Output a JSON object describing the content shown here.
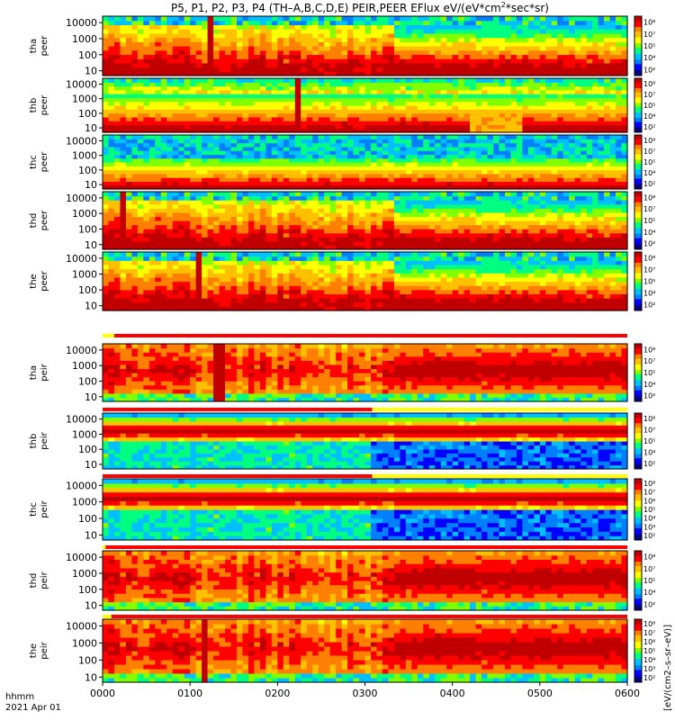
{
  "title": {
    "prefix": "P5, P1, P2, P3, P4 (TH–A,B,C,D,E) PEIR,PEER EFlux eV/(eV*cm",
    "sup": "2",
    "suffix": "*sec*sr)"
  },
  "time_axis": {
    "label_line1": "hhmm",
    "label_line2": "2021 Apr 01"
  },
  "colorbar_title": "[eV/(cm2–s–sr–eV)]",
  "colors": {
    "palette": [
      "#000080",
      "#0000ff",
      "#0080ff",
      "#00c0ff",
      "#00ff80",
      "#80ff00",
      "#ffff00",
      "#ffc000",
      "#ff8000",
      "#ff0000",
      "#c00000"
    ],
    "flag_red": "#ff0000",
    "flag_yellow": "#ffff00"
  },
  "chart_data": {
    "type": "heatmap",
    "x_ticks": [
      "0000",
      "0100",
      "0200",
      "0300",
      "0400",
      "0500",
      "0600"
    ],
    "x_range": [
      "00:00",
      "06:00"
    ],
    "y_scale": "log",
    "y_ticks": [
      "10",
      "100",
      "1000",
      "10000"
    ],
    "y_range_eV": [
      5,
      25000
    ],
    "colorbar_ticks": [
      "10²",
      "10³",
      "10⁴",
      "10⁵",
      "10⁶",
      "10⁷",
      "10⁸"
    ],
    "panels": [
      {
        "probe": "tha",
        "species": "peer",
        "profile": "electron_active",
        "spike_hhmm": 75
      },
      {
        "probe": "thb",
        "species": "peer",
        "profile": "electron_quiet",
        "spike_hhmm": 175
      },
      {
        "probe": "thc",
        "species": "peer",
        "profile": "electron_noisy",
        "spike_hhmm": null
      },
      {
        "probe": "thd",
        "species": "peer",
        "profile": "electron_active",
        "spike_hhmm": 15
      },
      {
        "probe": "the",
        "species": "peer",
        "profile": "electron_active",
        "spike_hhmm": 65
      },
      {
        "probe": "tha",
        "species": "peir",
        "profile": "ion_active",
        "spike_hhmm": 80,
        "flag_bar": [
          {
            "start": "00:00",
            "end": "00:08",
            "color": "yellow"
          },
          {
            "start": "00:08",
            "end": "06:00",
            "color": "red"
          }
        ]
      },
      {
        "probe": "thb",
        "species": "peir",
        "profile": "ion_cold",
        "spike_hhmm": null,
        "flag_bar": [
          {
            "start": "00:00",
            "end": "03:05",
            "color": "red"
          },
          {
            "start": "03:05",
            "end": "06:00",
            "color": "yellow"
          }
        ]
      },
      {
        "probe": "thc",
        "species": "peir",
        "profile": "ion_cold",
        "spike_hhmm": null,
        "flag_bar": [
          {
            "start": "00:00",
            "end": "03:05",
            "color": "red"
          },
          {
            "start": "03:05",
            "end": "06:00",
            "color": "yellow"
          }
        ]
      },
      {
        "probe": "thd",
        "species": "peir",
        "profile": "ion_active",
        "spike_hhmm": null,
        "flag_bar": [
          {
            "start": "00:00",
            "end": "00:02",
            "color": "yellow"
          },
          {
            "start": "00:02",
            "end": "06:00",
            "color": "red"
          }
        ]
      },
      {
        "probe": "the",
        "species": "peir",
        "profile": "ion_active",
        "spike_hhmm": 70,
        "flag_bar": [
          {
            "start": "00:00",
            "end": "00:06",
            "color": "yellow"
          },
          {
            "start": "00:06",
            "end": "06:00",
            "color": "red"
          }
        ]
      }
    ]
  }
}
